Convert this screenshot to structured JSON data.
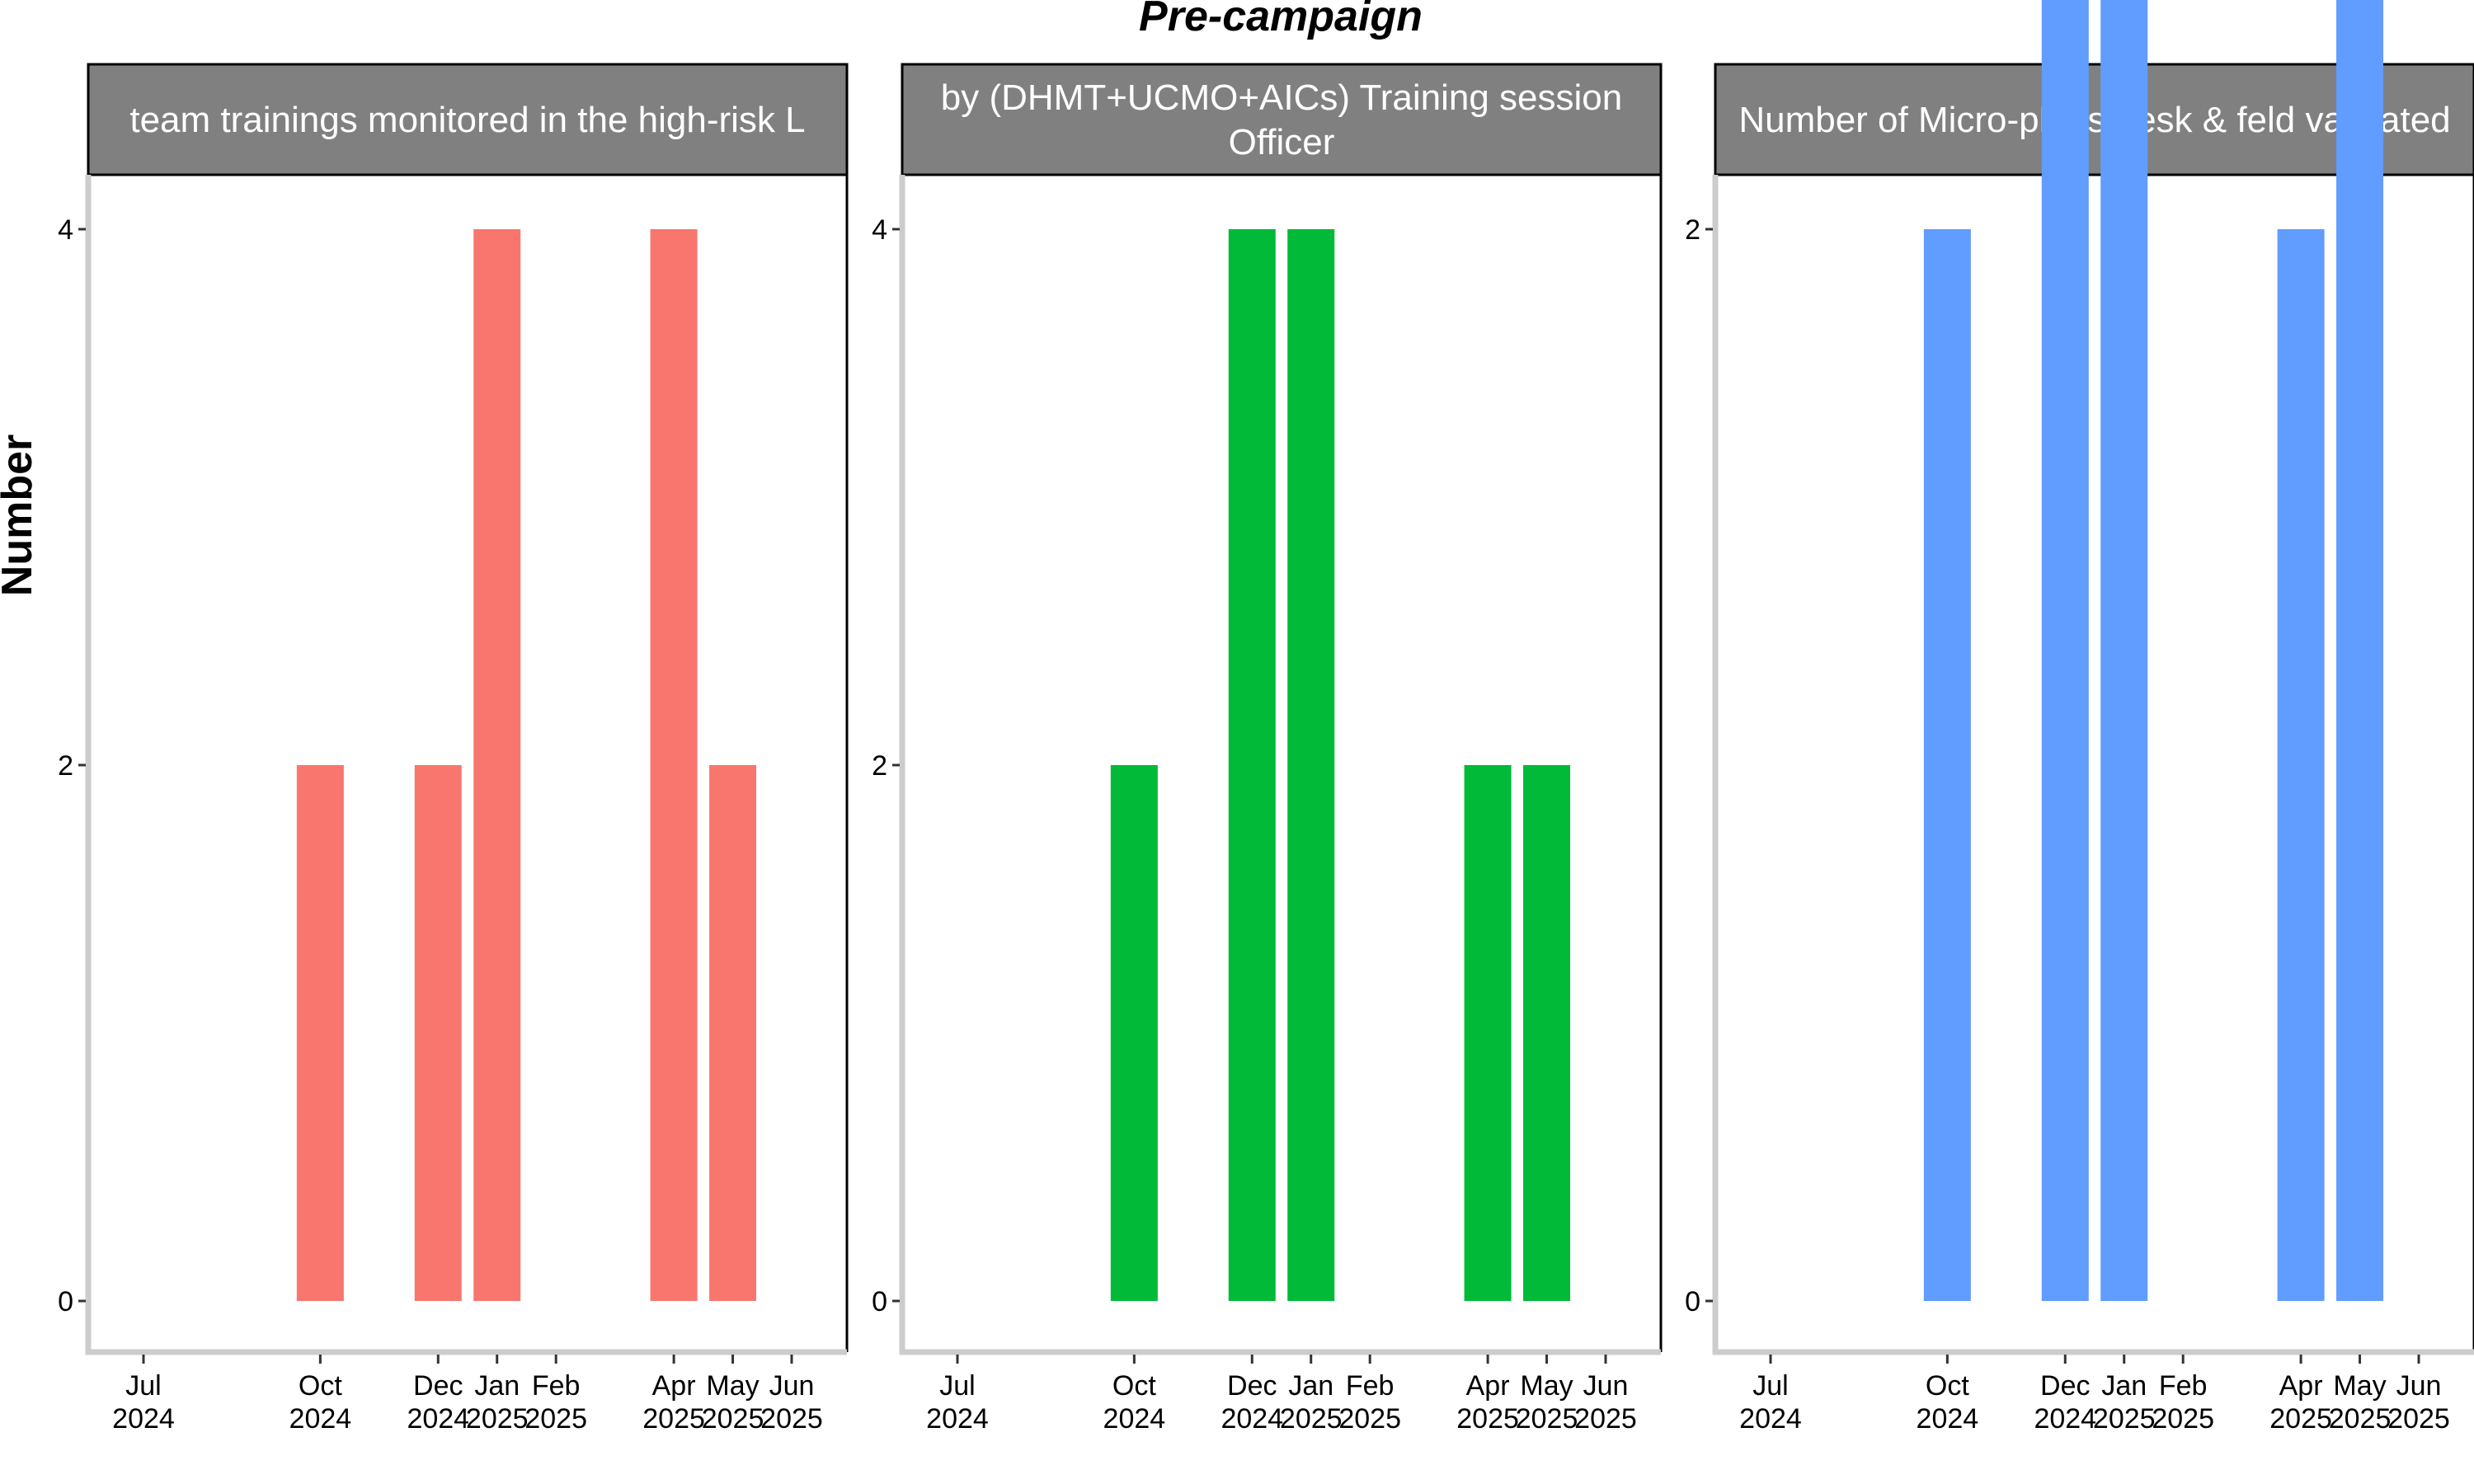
{
  "chart_data": {
    "title": "Pre-campaign",
    "ylabel": "Number",
    "x_tick_labels": [
      {
        "month": "Jul",
        "year": "2024",
        "date": "2024-07"
      },
      {
        "month": "Oct",
        "year": "2024",
        "date": "2024-10"
      },
      {
        "month": "Dec",
        "year": "2024",
        "date": "2024-12"
      },
      {
        "month": "Jan",
        "year": "2025",
        "date": "2025-01"
      },
      {
        "month": "Feb",
        "year": "2025",
        "date": "2025-02"
      },
      {
        "month": "Apr",
        "year": "2025",
        "date": "2025-04"
      },
      {
        "month": "May",
        "year": "2025",
        "date": "2025-05"
      },
      {
        "month": "Jun",
        "year": "2025",
        "date": "2025-06"
      }
    ],
    "panels": [
      {
        "type": "bar",
        "strip_lines": [
          "team trainings monitored in the high-risk L"
        ],
        "color": "#F8766D",
        "ylim": [
          0,
          4.2
        ],
        "yticks": [
          0,
          2,
          4
        ],
        "x": [
          "2024-10",
          "2024-12",
          "2025-01",
          "2025-04",
          "2025-05"
        ],
        "values": [
          2,
          2,
          4,
          4,
          2
        ]
      },
      {
        "type": "bar",
        "strip_lines": [
          "by (DHMT+UCMO+AICs) Training session",
          "Officer"
        ],
        "color": "#00BA38",
        "ylim": [
          0,
          4.2
        ],
        "yticks": [
          0,
          2,
          4
        ],
        "x": [
          "2024-10",
          "2024-12",
          "2025-01",
          "2025-04",
          "2025-05"
        ],
        "values": [
          2,
          4,
          4,
          2,
          2
        ]
      },
      {
        "type": "bar",
        "strip_lines": [
          "Number of Micro-plans desk & feld validated"
        ],
        "color": "#619CFF",
        "ylim": [
          0,
          3.1
        ],
        "yticks": [
          0,
          2
        ],
        "x": [
          "2024-10",
          "2024-12",
          "2025-01",
          "2025-04",
          "2025-05"
        ],
        "values": [
          2,
          3,
          3,
          2,
          3
        ]
      }
    ],
    "grid": false
  }
}
